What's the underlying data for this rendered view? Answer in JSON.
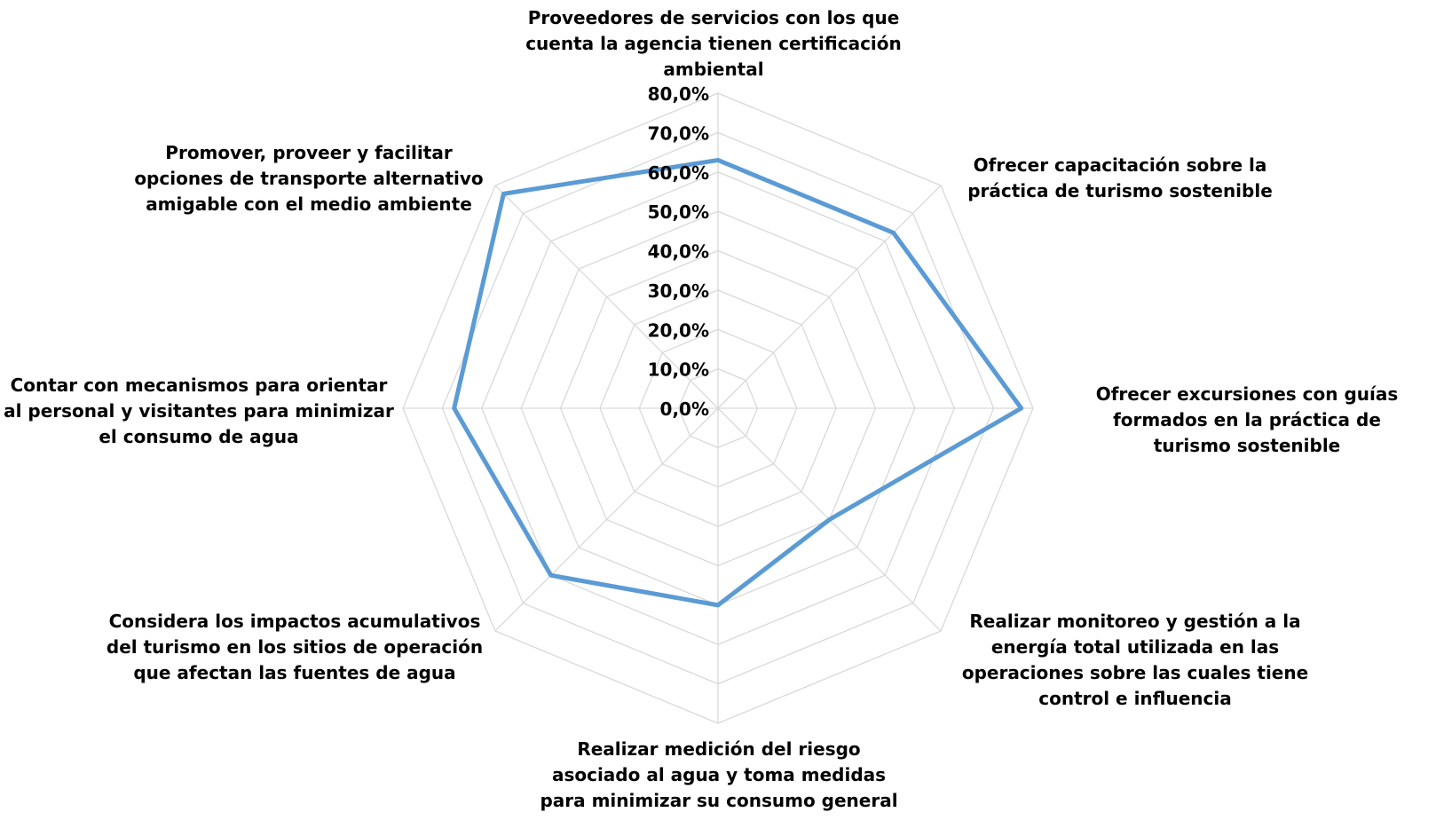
{
  "chart_data": {
    "type": "radar",
    "categories": [
      "Proveedores de servicios con los que cuenta la agencia tienen certificación ambiental",
      "Ofrecer capacitación sobre la práctica de turismo sostenible",
      "Ofrecer  excursiones con guías formados en la práctica de turismo sostenible",
      "Realizar monitoreo y gestión a la energía total utilizada en las operaciones sobre las cuales tiene control e influencia",
      "Realizar medición del riesgo asociado al agua y toma medidas para minimizar su consumo general",
      "Considera los impactos acumulativos del turismo en los sitios de operación que afectan las fuentes de agua",
      "Contar con mecanismos para orientar al personal y visitantes para minimizar el consumo de agua",
      "Promover, proveer y facilitar opciones de transporte alternativo amigable con el medio ambiente"
    ],
    "series": [
      {
        "values": [
          63.0,
          63.0,
          77.0,
          40.0,
          50.0,
          60.0,
          67.0,
          77.0
        ],
        "color": "#5b9bd5"
      }
    ],
    "rlim": [
      0,
      80
    ],
    "ticks": [
      "0,0%",
      "10,0%",
      "20,0%",
      "30,0%",
      "40,0%",
      "50,0%",
      "60,0%",
      "70,0%",
      "80,0%"
    ],
    "grid": true,
    "legend": "none",
    "grid_color": "#d9d9d9"
  }
}
